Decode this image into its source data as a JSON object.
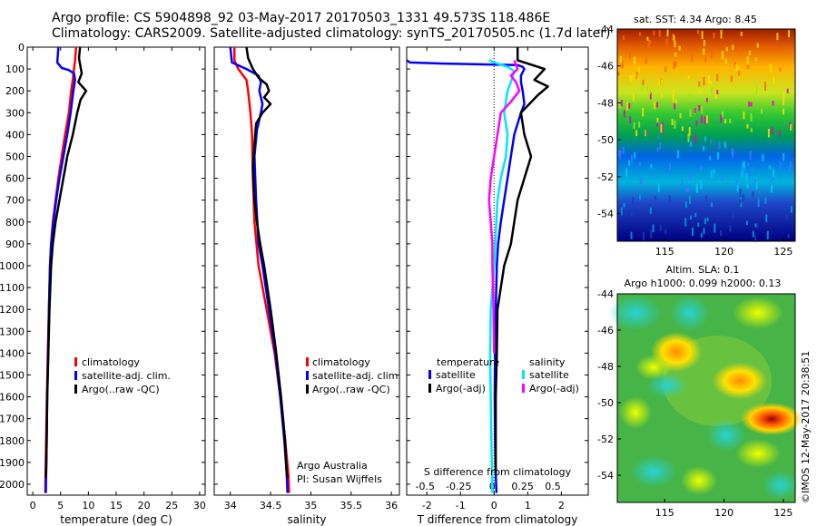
{
  "header": {
    "line1": "Argo profile: CS 5904898_92 03-May-2017 20170503_1331 49.573S 118.486E",
    "line2": "Climatology: CARS2009. Satellite-adjusted climatology: synTS_20170505.nc (1.7d later)"
  },
  "colors": {
    "climatology": "#ff0000",
    "satellite": "#0000ff",
    "argo": "#000000",
    "sat_sal": "#00e5ff",
    "argo_sal": "#ff00ff"
  },
  "chart_data": [
    {
      "type": "line",
      "id": "temperature",
      "xlabel": "temperature (deg C)",
      "ylabel": "depth",
      "xlim": [
        -1,
        31
      ],
      "ylim": [
        0,
        2050
      ],
      "xticks": [
        0,
        5,
        10,
        15,
        20,
        25,
        30
      ],
      "yticks": [
        0,
        100,
        200,
        300,
        400,
        500,
        600,
        700,
        800,
        900,
        1000,
        1100,
        1200,
        1300,
        1400,
        1500,
        1600,
        1700,
        1800,
        1900,
        2000
      ],
      "legend": [
        "climatology",
        "satellite-adj. clim.",
        "Argo(..raw -QC)"
      ],
      "series": [
        {
          "name": "climatology",
          "color": "#ff0000",
          "points": [
            [
              7.8,
              0
            ],
            [
              7.6,
              60
            ],
            [
              7.4,
              100
            ],
            [
              7.2,
              150
            ],
            [
              6.9,
              200
            ],
            [
              6.5,
              300
            ],
            [
              5.8,
              400
            ],
            [
              5.2,
              500
            ],
            [
              4.6,
              600
            ],
            [
              4.1,
              700
            ],
            [
              3.6,
              800
            ],
            [
              3.3,
              900
            ],
            [
              3.1,
              1000
            ],
            [
              2.9,
              1200
            ],
            [
              2.7,
              1400
            ],
            [
              2.55,
              1600
            ],
            [
              2.4,
              1800
            ],
            [
              2.3,
              1950
            ],
            [
              2.25,
              2040
            ]
          ]
        },
        {
          "name": "satellite-adj. clim.",
          "color": "#0000ff",
          "points": [
            [
              4.6,
              0
            ],
            [
              4.4,
              70
            ],
            [
              5.2,
              95
            ],
            [
              6.5,
              105
            ],
            [
              7.4,
              120
            ],
            [
              7.6,
              150
            ],
            [
              7.3,
              200
            ],
            [
              6.8,
              300
            ],
            [
              6.2,
              400
            ],
            [
              5.5,
              500
            ],
            [
              4.8,
              600
            ],
            [
              4.2,
              700
            ],
            [
              3.7,
              800
            ],
            [
              3.3,
              900
            ],
            [
              3.1,
              1000
            ],
            [
              2.9,
              1200
            ],
            [
              2.75,
              1400
            ],
            [
              2.6,
              1600
            ],
            [
              2.5,
              1800
            ],
            [
              2.4,
              1950
            ],
            [
              2.35,
              2040
            ]
          ]
        },
        {
          "name": "Argo(..raw -QC)",
          "color": "#000000",
          "points": [
            [
              8.5,
              0
            ],
            [
              8.3,
              50
            ],
            [
              8.8,
              120
            ],
            [
              8.2,
              160
            ],
            [
              9.6,
              200
            ],
            [
              8.6,
              240
            ],
            [
              8.0,
              300
            ],
            [
              7.2,
              400
            ],
            [
              6.2,
              500
            ],
            [
              5.5,
              600
            ],
            [
              4.8,
              700
            ],
            [
              4.1,
              800
            ],
            [
              3.6,
              900
            ],
            [
              3.3,
              1000
            ],
            [
              3.0,
              1200
            ],
            [
              2.8,
              1400
            ],
            [
              2.6,
              1600
            ],
            [
              2.5,
              1800
            ],
            [
              2.4,
              1950
            ],
            [
              2.35,
              1970
            ]
          ]
        }
      ]
    },
    {
      "type": "line",
      "id": "salinity",
      "xlabel": "salinity",
      "xlim": [
        33.8,
        36.1
      ],
      "ylim": [
        0,
        2050
      ],
      "xticks": [
        34,
        34.5,
        35,
        35.5,
        36
      ],
      "legend": [
        "climatology",
        "satellite-adj. clim.",
        "Argo(..raw -QC)"
      ],
      "series": [
        {
          "name": "climatology",
          "color": "#ff0000",
          "points": [
            [
              34.05,
              0
            ],
            [
              34.05,
              60
            ],
            [
              34.1,
              100
            ],
            [
              34.2,
              150
            ],
            [
              34.22,
              200
            ],
            [
              34.25,
              300
            ],
            [
              34.27,
              400
            ],
            [
              34.28,
              600
            ],
            [
              34.3,
              800
            ],
            [
              34.35,
              1000
            ],
            [
              34.45,
              1200
            ],
            [
              34.55,
              1400
            ],
            [
              34.62,
              1600
            ],
            [
              34.68,
              1800
            ],
            [
              34.72,
              1950
            ],
            [
              34.73,
              2040
            ]
          ]
        },
        {
          "name": "satellite-adj. clim.",
          "color": "#0000ff",
          "points": [
            [
              34.0,
              0
            ],
            [
              34.02,
              70
            ],
            [
              34.2,
              100
            ],
            [
              34.35,
              130
            ],
            [
              34.38,
              160
            ],
            [
              34.36,
              200
            ],
            [
              34.4,
              260
            ],
            [
              34.38,
              300
            ],
            [
              34.33,
              380
            ],
            [
              34.3,
              500
            ],
            [
              34.32,
              700
            ],
            [
              34.35,
              900
            ],
            [
              34.4,
              1000
            ],
            [
              34.48,
              1200
            ],
            [
              34.56,
              1400
            ],
            [
              34.62,
              1600
            ],
            [
              34.67,
              1800
            ],
            [
              34.7,
              1950
            ],
            [
              34.71,
              2040
            ]
          ]
        },
        {
          "name": "Argo(..raw -QC)",
          "color": "#000000",
          "points": [
            [
              34.2,
              0
            ],
            [
              34.22,
              50
            ],
            [
              34.28,
              100
            ],
            [
              34.35,
              140
            ],
            [
              34.45,
              170
            ],
            [
              34.48,
              200
            ],
            [
              34.42,
              230
            ],
            [
              34.5,
              260
            ],
            [
              34.4,
              300
            ],
            [
              34.32,
              350
            ],
            [
              34.3,
              450
            ],
            [
              34.28,
              550
            ],
            [
              34.3,
              700
            ],
            [
              34.33,
              800
            ],
            [
              34.37,
              900
            ],
            [
              34.42,
              1000
            ],
            [
              34.5,
              1200
            ],
            [
              34.57,
              1400
            ],
            [
              34.63,
              1600
            ],
            [
              34.68,
              1800
            ],
            [
              34.7,
              1950
            ],
            [
              34.71,
              1970
            ]
          ]
        }
      ],
      "annotations": [
        "Argo Australia",
        "PI: Susan Wijffels"
      ]
    },
    {
      "type": "line",
      "id": "difference",
      "xlabel": "T difference from climatology",
      "xlabel_top": "S difference from climatology",
      "xlim": [
        -2.6,
        2.8
      ],
      "ylim": [
        0,
        2050
      ],
      "xticks": [
        -2,
        -1,
        0,
        1,
        2
      ],
      "xticks_top": [
        -0.5,
        -0.25,
        0,
        0.25,
        0.5
      ],
      "legend_titles": [
        "temperature",
        "salinity"
      ],
      "legend": [
        "satellite",
        "Argo(-adj)",
        "satellite",
        "Argo(-adj)"
      ],
      "series": [
        {
          "name": "temperature satellite",
          "color": "#0000ff",
          "points": [
            [
              -2.6,
              60
            ],
            [
              -2.5,
              70
            ],
            [
              -1.5,
              75
            ],
            [
              0.7,
              82
            ],
            [
              0.85,
              90
            ],
            [
              0.9,
              100
            ],
            [
              0.8,
              130
            ],
            [
              0.8,
              160
            ],
            [
              0.85,
              200
            ],
            [
              0.9,
              260
            ],
            [
              0.8,
              300
            ],
            [
              0.6,
              400
            ],
            [
              0.5,
              500
            ],
            [
              0.4,
              600
            ],
            [
              0.3,
              700
            ],
            [
              0.2,
              800
            ],
            [
              0.12,
              900
            ],
            [
              0.08,
              1000
            ],
            [
              0.05,
              1200
            ],
            [
              0.03,
              1400
            ],
            [
              0.02,
              1600
            ],
            [
              0.03,
              1800
            ],
            [
              0.05,
              1950
            ],
            [
              0.07,
              2040
            ]
          ]
        },
        {
          "name": "temperature Argo(-adj)",
          "color": "#000000",
          "points": [
            [
              0.7,
              0
            ],
            [
              0.7,
              60
            ],
            [
              1.5,
              100
            ],
            [
              1.2,
              150
            ],
            [
              1.6,
              180
            ],
            [
              1.3,
              220
            ],
            [
              0.8,
              300
            ],
            [
              0.9,
              400
            ],
            [
              1.1,
              500
            ],
            [
              0.9,
              600
            ],
            [
              0.7,
              700
            ],
            [
              0.6,
              800
            ],
            [
              0.5,
              900
            ],
            [
              0.3,
              1000
            ],
            [
              0.2,
              1100
            ],
            [
              0.1,
              1200
            ],
            [
              0.08,
              1400
            ],
            [
              0.05,
              1600
            ],
            [
              0.05,
              1800
            ],
            [
              0.05,
              1950
            ]
          ]
        },
        {
          "name": "salinity satellite",
          "color": "#00e5ff",
          "points": [
            [
              -0.15,
              60
            ],
            [
              0.1,
              75
            ],
            [
              0.4,
              90
            ],
            [
              0.6,
              110
            ],
            [
              0.5,
              160
            ],
            [
              0.4,
              200
            ],
            [
              0.3,
              300
            ],
            [
              0.4,
              400
            ],
            [
              0.35,
              500
            ],
            [
              0.2,
              600
            ],
            [
              0.1,
              700
            ],
            [
              0.0,
              1000
            ],
            [
              -0.1,
              1200
            ],
            [
              -0.12,
              1400
            ],
            [
              -0.1,
              1600
            ],
            [
              -0.08,
              1800
            ],
            [
              -0.06,
              1950
            ],
            [
              -0.05,
              2040
            ]
          ]
        },
        {
          "name": "salinity Argo(-adj)",
          "color": "#ff00ff",
          "points": [
            [
              0.6,
              60
            ],
            [
              0.7,
              100
            ],
            [
              0.5,
              130
            ],
            [
              0.65,
              160
            ],
            [
              0.75,
              200
            ],
            [
              0.5,
              250
            ],
            [
              0.2,
              300
            ],
            [
              0.1,
              400
            ],
            [
              0.0,
              500
            ],
            [
              -0.1,
              600
            ],
            [
              -0.15,
              700
            ],
            [
              -0.1,
              800
            ],
            [
              -0.05,
              900
            ],
            [
              -0.05,
              1000
            ],
            [
              -0.02,
              1200
            ],
            [
              0.0,
              1400
            ]
          ]
        }
      ]
    },
    {
      "type": "heatmap",
      "id": "sst_map",
      "title": "sat. SST: 4.34  Argo: 8.45",
      "xlim": [
        111,
        126
      ],
      "ylim": [
        -55.5,
        -44
      ],
      "xticks": [
        115,
        120,
        125
      ],
      "yticks": [
        -44,
        -46,
        -48,
        -50,
        -52,
        -54
      ]
    },
    {
      "type": "heatmap",
      "id": "sla_map",
      "title": "Altim. SLA: 0.1",
      "subtitle": "Argo h1000: 0.099  h2000: 0.13",
      "xlim": [
        111,
        126
      ],
      "ylim": [
        -55.5,
        -44
      ],
      "xticks": [
        115,
        120,
        125
      ],
      "yticks": [
        -44,
        -46,
        -48,
        -50,
        -52,
        -54
      ]
    }
  ],
  "credit": "©IMOS 12-May-2017 20:38:51"
}
